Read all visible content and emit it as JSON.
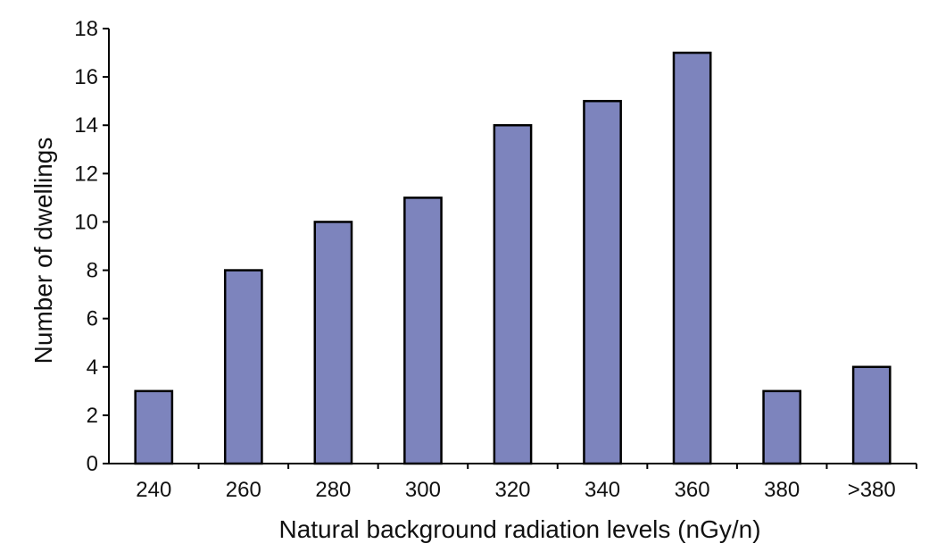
{
  "chart_data": {
    "type": "bar",
    "categories": [
      "240",
      "260",
      "280",
      "300",
      "320",
      "340",
      "360",
      "380",
      ">380"
    ],
    "values": [
      3,
      8,
      10,
      11,
      14,
      15,
      17,
      3,
      4
    ],
    "xlabel": "Natural background radiation levels (nGy/n)",
    "ylabel": "Number of dwellings",
    "ylim": [
      0,
      18
    ],
    "yticks": [
      0,
      2,
      4,
      6,
      8,
      10,
      12,
      14,
      16,
      18
    ],
    "grid": false,
    "legend": "none",
    "bar_color": "#7d84bd",
    "bar_edge_color": "#000000"
  }
}
